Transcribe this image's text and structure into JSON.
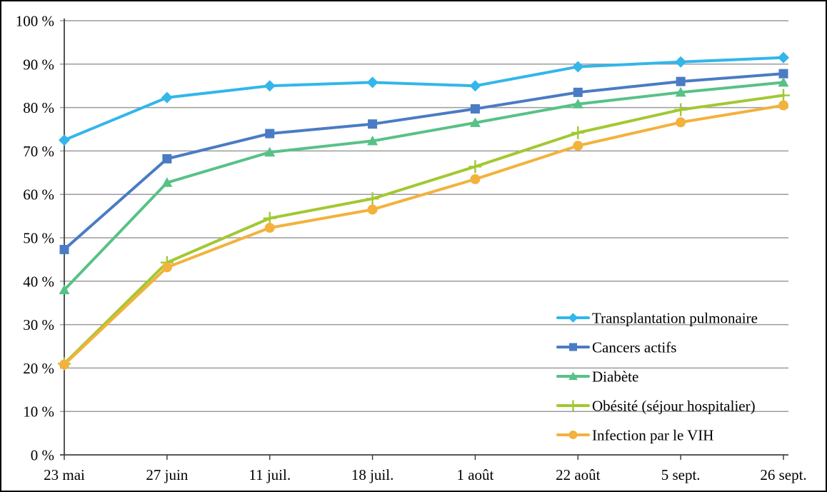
{
  "chart_data": {
    "type": "line",
    "title": "",
    "xlabel": "",
    "ylabel": "",
    "ylim": [
      0,
      100
    ],
    "grid": true,
    "legend_position": "lower-right-overlay",
    "categories": [
      "23 mai",
      "27 juin",
      "11 juil.",
      "18 juil.",
      "1 août",
      "22 août",
      "5 sept.",
      "26 sept."
    ],
    "y_tick_labels": [
      "0 %",
      "10 %",
      "20 %",
      "30 %",
      "40 %",
      "50 %",
      "60 %",
      "70 %",
      "80 %",
      "90 %",
      "100 %"
    ],
    "series": [
      {
        "name": "Transplantation pulmonaire",
        "marker": "diamond",
        "color": "#33B6EA",
        "values": [
          72.5,
          82.3,
          85.0,
          85.8,
          85.0,
          89.4,
          90.5,
          91.5
        ]
      },
      {
        "name": "Cancers actifs",
        "marker": "square",
        "color": "#4A7BC4",
        "values": [
          47.3,
          68.2,
          74.0,
          76.2,
          79.7,
          83.5,
          86.0,
          87.8
        ]
      },
      {
        "name": "Diabète",
        "marker": "triangle",
        "color": "#58C187",
        "values": [
          38.0,
          62.7,
          69.7,
          72.3,
          76.5,
          80.8,
          83.5,
          85.8
        ]
      },
      {
        "name": "Obésité (séjour hospitalier)",
        "marker": "plus",
        "color": "#A2C832",
        "values": [
          21.0,
          44.3,
          54.5,
          59.0,
          66.4,
          74.2,
          79.5,
          82.8
        ]
      },
      {
        "name": "Infection par le VIH",
        "marker": "circle",
        "color": "#F2B23D",
        "values": [
          20.8,
          43.2,
          52.3,
          56.5,
          63.5,
          71.2,
          76.6,
          80.5
        ]
      }
    ],
    "colors": {
      "grid": "#9C9C9C",
      "axis": "#404040",
      "text": "#000000",
      "background": "#FFFFFF"
    }
  }
}
